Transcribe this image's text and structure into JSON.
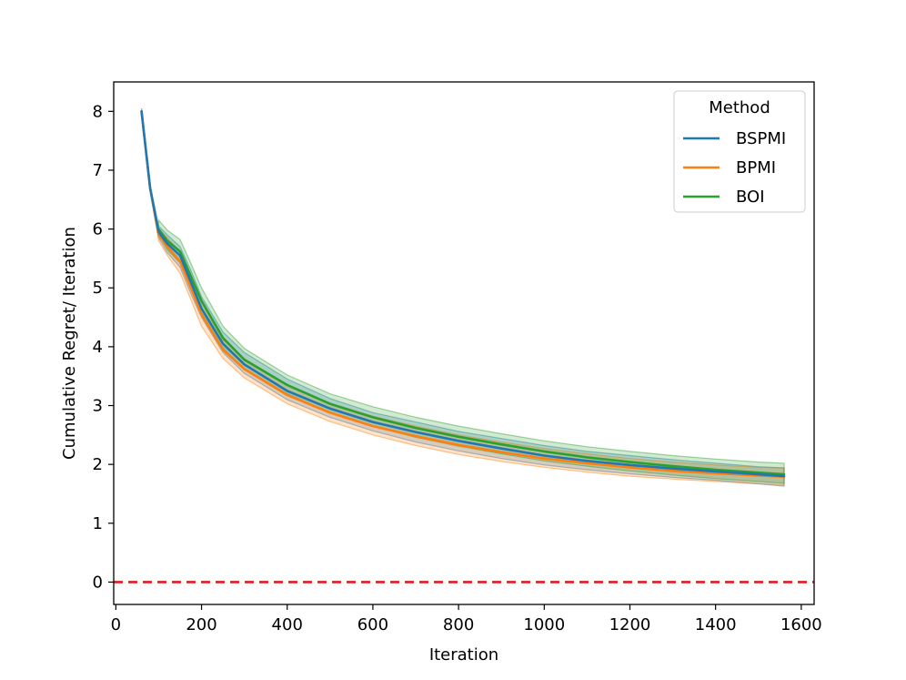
{
  "chart_data": {
    "type": "line",
    "title": "",
    "xlabel": "Iteration",
    "ylabel": "Cumulative Regret/ Iteration",
    "xlim": [
      -5,
      1630
    ],
    "ylim": [
      -0.38,
      8.5
    ],
    "xticks": [
      0,
      200,
      400,
      600,
      800,
      1000,
      1200,
      1400,
      1600
    ],
    "yticks": [
      0,
      1,
      2,
      3,
      4,
      5,
      6,
      7,
      8
    ],
    "grid": false,
    "legend": {
      "title": "Method",
      "position": "top-right"
    },
    "reference_line": {
      "y": 0,
      "color": "#e31a1c",
      "style": "dashed"
    },
    "series": [
      {
        "name": "BSPMI",
        "color": "#1f77b4",
        "x": [
          60,
          80,
          100,
          120,
          150,
          175,
          200,
          250,
          300,
          400,
          500,
          600,
          700,
          800,
          900,
          1000,
          1100,
          1200,
          1300,
          1400,
          1500,
          1560
        ],
        "y": [
          8.0,
          6.7,
          5.95,
          5.75,
          5.55,
          5.1,
          4.65,
          4.05,
          3.7,
          3.25,
          2.95,
          2.72,
          2.55,
          2.4,
          2.27,
          2.15,
          2.06,
          1.99,
          1.93,
          1.88,
          1.83,
          1.8
        ],
        "lower": [
          7.95,
          6.65,
          5.85,
          5.6,
          5.35,
          4.9,
          4.5,
          3.9,
          3.55,
          3.1,
          2.8,
          2.57,
          2.38,
          2.23,
          2.1,
          1.99,
          1.91,
          1.84,
          1.78,
          1.73,
          1.67,
          1.63
        ],
        "upper": [
          8.05,
          6.75,
          6.05,
          5.9,
          5.7,
          5.3,
          4.85,
          4.25,
          3.9,
          3.45,
          3.12,
          2.88,
          2.72,
          2.56,
          2.44,
          2.32,
          2.22,
          2.15,
          2.08,
          2.02,
          1.96,
          1.94
        ]
      },
      {
        "name": "BPMI",
        "color": "#ff7f0e",
        "x": [
          60,
          80,
          100,
          120,
          150,
          175,
          200,
          250,
          300,
          400,
          500,
          600,
          700,
          800,
          900,
          1000,
          1100,
          1200,
          1300,
          1400,
          1500,
          1560
        ],
        "y": [
          8.0,
          6.7,
          5.9,
          5.7,
          5.45,
          5.0,
          4.55,
          3.95,
          3.62,
          3.18,
          2.88,
          2.65,
          2.48,
          2.33,
          2.21,
          2.1,
          2.02,
          1.95,
          1.89,
          1.85,
          1.81,
          1.79
        ],
        "lower": [
          7.95,
          6.65,
          5.8,
          5.55,
          5.25,
          4.8,
          4.35,
          3.8,
          3.47,
          3.03,
          2.73,
          2.5,
          2.32,
          2.17,
          2.05,
          1.95,
          1.87,
          1.8,
          1.75,
          1.71,
          1.67,
          1.65
        ],
        "upper": [
          8.05,
          6.75,
          6.0,
          5.85,
          5.62,
          5.2,
          4.75,
          4.12,
          3.8,
          3.35,
          3.04,
          2.82,
          2.65,
          2.5,
          2.38,
          2.27,
          2.18,
          2.1,
          2.04,
          1.99,
          1.95,
          1.94
        ]
      },
      {
        "name": "BOI",
        "color": "#2ca02c",
        "x": [
          100,
          120,
          150,
          175,
          200,
          250,
          300,
          400,
          500,
          600,
          700,
          800,
          900,
          1000,
          1100,
          1200,
          1300,
          1400,
          1500,
          1560
        ],
        "y": [
          6.0,
          5.8,
          5.62,
          5.2,
          4.78,
          4.15,
          3.78,
          3.35,
          3.03,
          2.8,
          2.62,
          2.47,
          2.34,
          2.22,
          2.12,
          2.04,
          1.97,
          1.91,
          1.86,
          1.83
        ],
        "lower": [
          5.9,
          5.65,
          5.42,
          5.0,
          4.58,
          3.98,
          3.62,
          3.2,
          2.88,
          2.65,
          2.46,
          2.31,
          2.18,
          2.06,
          1.97,
          1.89,
          1.82,
          1.76,
          1.71,
          1.68
        ],
        "upper": [
          6.15,
          5.98,
          5.82,
          5.42,
          5.0,
          4.35,
          3.97,
          3.52,
          3.2,
          2.98,
          2.8,
          2.65,
          2.52,
          2.4,
          2.3,
          2.22,
          2.15,
          2.09,
          2.04,
          2.02
        ]
      }
    ]
  }
}
